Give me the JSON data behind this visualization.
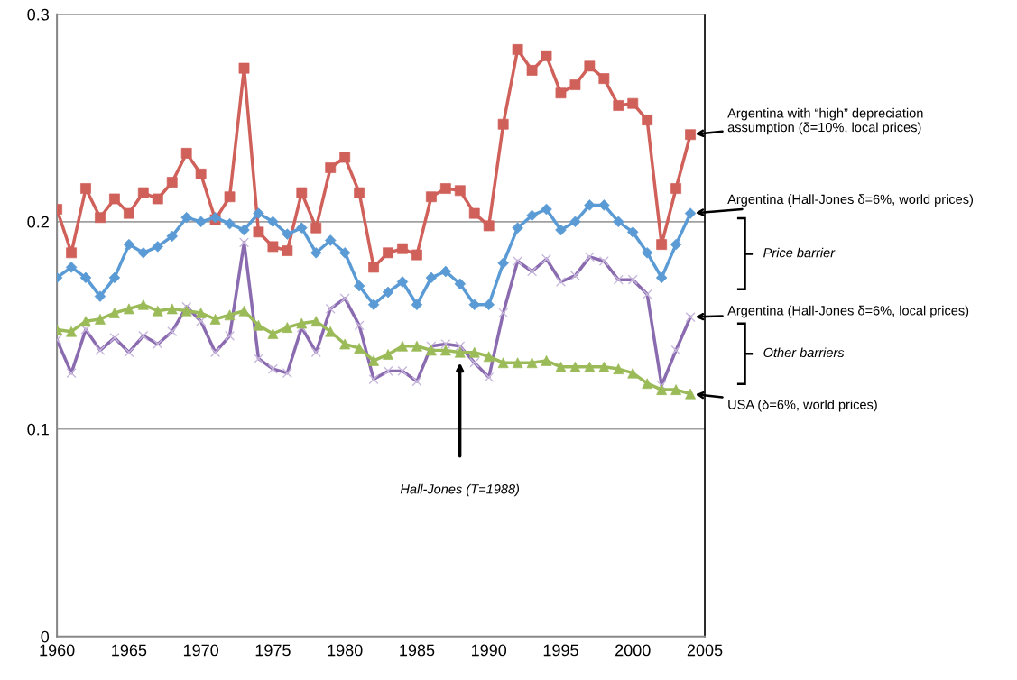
{
  "chart_data": {
    "type": "line",
    "x": [
      1960,
      1961,
      1962,
      1963,
      1964,
      1965,
      1966,
      1967,
      1968,
      1969,
      1970,
      1971,
      1972,
      1973,
      1974,
      1975,
      1976,
      1977,
      1978,
      1979,
      1980,
      1981,
      1982,
      1983,
      1984,
      1985,
      1986,
      1987,
      1988,
      1989,
      1990,
      1991,
      1992,
      1993,
      1994,
      1995,
      1996,
      1997,
      1998,
      1999,
      2000,
      2001,
      2002,
      2003,
      2004
    ],
    "xlim": [
      1960,
      2005
    ],
    "xticks": [
      1960,
      1965,
      1970,
      1975,
      1980,
      1985,
      1990,
      1995,
      2000,
      2005
    ],
    "ylim": [
      0,
      0.3
    ],
    "yticks": [
      0,
      0.1,
      0.2,
      0.3
    ],
    "grid": "y",
    "legend": false,
    "series": [
      {
        "name": "Argentina with “high” depreciation assumption (δ=10%, local prices)",
        "color": "#d0605a",
        "marker": "square",
        "values": [
          0.206,
          0.185,
          0.216,
          0.202,
          0.211,
          0.204,
          0.214,
          0.211,
          0.219,
          0.233,
          0.223,
          0.201,
          0.212,
          0.274,
          0.195,
          0.188,
          0.186,
          0.214,
          0.197,
          0.226,
          0.231,
          0.214,
          0.178,
          0.185,
          0.187,
          0.184,
          0.212,
          0.216,
          0.215,
          0.204,
          0.198,
          0.247,
          0.283,
          0.273,
          0.28,
          0.262,
          0.266,
          0.275,
          0.269,
          0.256,
          0.257,
          0.249,
          0.189,
          0.216,
          0.242
        ]
      },
      {
        "name": "Argentina (Hall-Jones δ=6%, world prices)",
        "color": "#5b9bd5",
        "marker": "diamond",
        "values": [
          0.173,
          0.178,
          0.173,
          0.164,
          0.173,
          0.189,
          0.185,
          0.188,
          0.193,
          0.202,
          0.2,
          0.202,
          0.199,
          0.196,
          0.204,
          0.2,
          0.194,
          0.197,
          0.185,
          0.191,
          0.185,
          0.169,
          0.16,
          0.166,
          0.171,
          0.16,
          0.173,
          0.176,
          0.17,
          0.16,
          0.16,
          0.18,
          0.197,
          0.203,
          0.206,
          0.196,
          0.2,
          0.208,
          0.208,
          0.2,
          0.195,
          0.185,
          0.173,
          0.189,
          0.204
        ]
      },
      {
        "name": "Argentina (Hall-Jones δ=6%, local prices)",
        "color": "#8a6bb0",
        "marker": "cross",
        "values": [
          0.143,
          0.127,
          0.148,
          0.138,
          0.144,
          0.137,
          0.145,
          0.141,
          0.147,
          0.159,
          0.152,
          0.137,
          0.145,
          0.19,
          0.134,
          0.129,
          0.127,
          0.149,
          0.137,
          0.158,
          0.163,
          0.15,
          0.124,
          0.128,
          0.128,
          0.123,
          0.14,
          0.141,
          0.14,
          0.132,
          0.125,
          0.156,
          0.181,
          0.176,
          0.182,
          0.171,
          0.174,
          0.183,
          0.181,
          0.172,
          0.172,
          0.165,
          0.121,
          0.138,
          0.154
        ]
      },
      {
        "name": "USA (δ=6%, world prices)",
        "color": "#9bbb59",
        "marker": "triangle",
        "values": [
          0.148,
          0.147,
          0.152,
          0.153,
          0.156,
          0.158,
          0.16,
          0.157,
          0.158,
          0.157,
          0.156,
          0.153,
          0.155,
          0.157,
          0.15,
          0.146,
          0.149,
          0.151,
          0.152,
          0.147,
          0.141,
          0.139,
          0.133,
          0.136,
          0.14,
          0.14,
          0.138,
          0.138,
          0.137,
          0.137,
          0.135,
          0.132,
          0.132,
          0.132,
          0.133,
          0.13,
          0.13,
          0.13,
          0.13,
          0.129,
          0.127,
          0.122,
          0.119,
          0.119,
          0.117
        ]
      }
    ],
    "annotations": [
      "Price barrier",
      "Other barriers",
      "Hall-Jones (T=1988)"
    ]
  }
}
